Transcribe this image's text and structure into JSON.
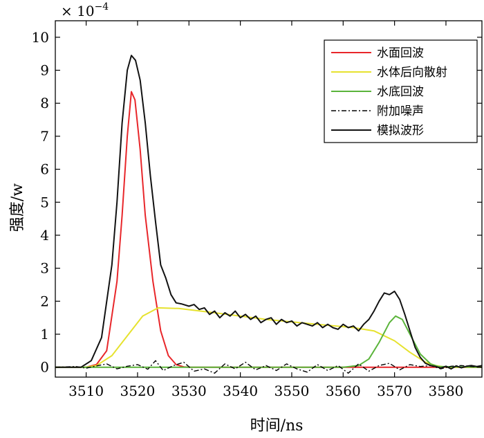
{
  "chart_data": {
    "type": "line",
    "xlabel": "时间/ns",
    "ylabel": "强度/w",
    "exponent_label": "× 10",
    "exponent_power": "−4",
    "xlim": [
      3504,
      3587
    ],
    "ylim": [
      -0.3,
      10.5
    ],
    "x_ticks": [
      3510,
      3520,
      3530,
      3540,
      3550,
      3560,
      3570,
      3580
    ],
    "y_ticks": [
      0,
      1,
      2,
      3,
      4,
      5,
      6,
      7,
      8,
      9,
      10
    ],
    "legend_position": "top-right",
    "series": [
      {
        "name": "水面回波",
        "color": "#e8262a",
        "dash": "solid",
        "x": [
          3504,
          3510,
          3512,
          3514,
          3516,
          3517,
          3518,
          3518.8,
          3519.5,
          3520.5,
          3521.5,
          3523,
          3524.5,
          3526,
          3527.5,
          3529,
          3530,
          3535,
          3587
        ],
        "y": [
          0,
          0,
          0.08,
          0.5,
          2.6,
          4.6,
          7.0,
          8.35,
          8.1,
          6.6,
          4.6,
          2.6,
          1.1,
          0.35,
          0.08,
          0.01,
          0,
          0,
          0
        ]
      },
      {
        "name": "水体后向散射",
        "color": "#e6e22e",
        "dash": "solid",
        "x": [
          3504,
          3510,
          3512,
          3515,
          3518,
          3521,
          3524,
          3528,
          3535,
          3545,
          3555,
          3562,
          3566,
          3570,
          3573,
          3576,
          3578,
          3580,
          3587
        ],
        "y": [
          0,
          0,
          0.05,
          0.35,
          0.95,
          1.55,
          1.8,
          1.78,
          1.65,
          1.45,
          1.3,
          1.2,
          1.1,
          0.8,
          0.45,
          0.15,
          0.05,
          0,
          0
        ]
      },
      {
        "name": "水底回波",
        "color": "#5ab43a",
        "dash": "solid",
        "x": [
          3504,
          3560,
          3563,
          3565,
          3567,
          3569,
          3570.2,
          3571.5,
          3573,
          3575,
          3577,
          3578.5,
          3587
        ],
        "y": [
          0,
          0,
          0.05,
          0.25,
          0.75,
          1.35,
          1.55,
          1.45,
          1.0,
          0.4,
          0.1,
          0.02,
          0
        ]
      },
      {
        "name": "附加噪声",
        "color": "#000000",
        "dash": "dashdot",
        "x": [
          3504,
          3508,
          3510,
          3512,
          3514,
          3516,
          3518,
          3520,
          3522,
          3523.5,
          3525,
          3527,
          3529,
          3531,
          3533,
          3535,
          3537,
          3539,
          3541,
          3543,
          3545,
          3547,
          3549,
          3551,
          3553,
          3555,
          3557,
          3559,
          3561,
          3563,
          3565,
          3567,
          3569,
          3571,
          3573,
          3575,
          3577,
          3579,
          3581,
          3583,
          3585,
          3587
        ],
        "y": [
          0,
          0.02,
          -0.03,
          0.04,
          0.1,
          -0.05,
          0.03,
          0.08,
          -0.06,
          0.2,
          -0.1,
          0.05,
          0.15,
          -0.12,
          -0.05,
          -0.18,
          0.1,
          -0.05,
          0.15,
          -0.08,
          0.05,
          -0.1,
          0.1,
          -0.05,
          -0.15,
          0.08,
          -0.1,
          0.05,
          -0.18,
          0.1,
          -0.12,
          0.05,
          0.12,
          -0.08,
          0.08,
          0.02,
          0.05,
          -0.05,
          0.03,
          0.05,
          0.02,
          0
        ]
      },
      {
        "name": "模拟波形",
        "color": "#111111",
        "dash": "solid",
        "x": [
          3504,
          3509,
          3511,
          3513,
          3515,
          3516,
          3517,
          3518,
          3518.8,
          3519.6,
          3520.5,
          3521.5,
          3522.5,
          3523.5,
          3524.5,
          3525.5,
          3526.5,
          3527.5,
          3528.5,
          3530,
          3531,
          3532,
          3533,
          3534,
          3535,
          3536,
          3537,
          3538,
          3539,
          3540,
          3541,
          3542,
          3543,
          3544,
          3545,
          3546,
          3547,
          3548,
          3549,
          3550,
          3551,
          3552,
          3553,
          3554,
          3555,
          3556,
          3557,
          3558,
          3559,
          3560,
          3561,
          3562,
          3563,
          3564,
          3565,
          3566,
          3567,
          3568,
          3569,
          3570,
          3571,
          3572,
          3573,
          3574,
          3575,
          3576,
          3577,
          3578,
          3579,
          3580,
          3581,
          3582,
          3583,
          3584,
          3585,
          3586,
          3587
        ],
        "y": [
          0,
          0,
          0.2,
          0.9,
          3.1,
          5.0,
          7.4,
          9.0,
          9.45,
          9.3,
          8.7,
          7.4,
          5.8,
          4.4,
          3.1,
          2.7,
          2.2,
          1.95,
          1.92,
          1.85,
          1.9,
          1.75,
          1.8,
          1.6,
          1.7,
          1.5,
          1.65,
          1.55,
          1.7,
          1.5,
          1.6,
          1.45,
          1.55,
          1.35,
          1.45,
          1.5,
          1.3,
          1.45,
          1.35,
          1.4,
          1.25,
          1.35,
          1.3,
          1.25,
          1.35,
          1.2,
          1.3,
          1.2,
          1.15,
          1.3,
          1.2,
          1.25,
          1.1,
          1.3,
          1.45,
          1.7,
          2.0,
          2.25,
          2.2,
          2.3,
          2.05,
          1.6,
          1.1,
          0.6,
          0.3,
          0.12,
          0.05,
          0.02,
          -0.03,
          0.03,
          -0.05,
          0.04,
          -0.02,
          0.03,
          0.05,
          0.02,
          0.05
        ]
      }
    ]
  }
}
